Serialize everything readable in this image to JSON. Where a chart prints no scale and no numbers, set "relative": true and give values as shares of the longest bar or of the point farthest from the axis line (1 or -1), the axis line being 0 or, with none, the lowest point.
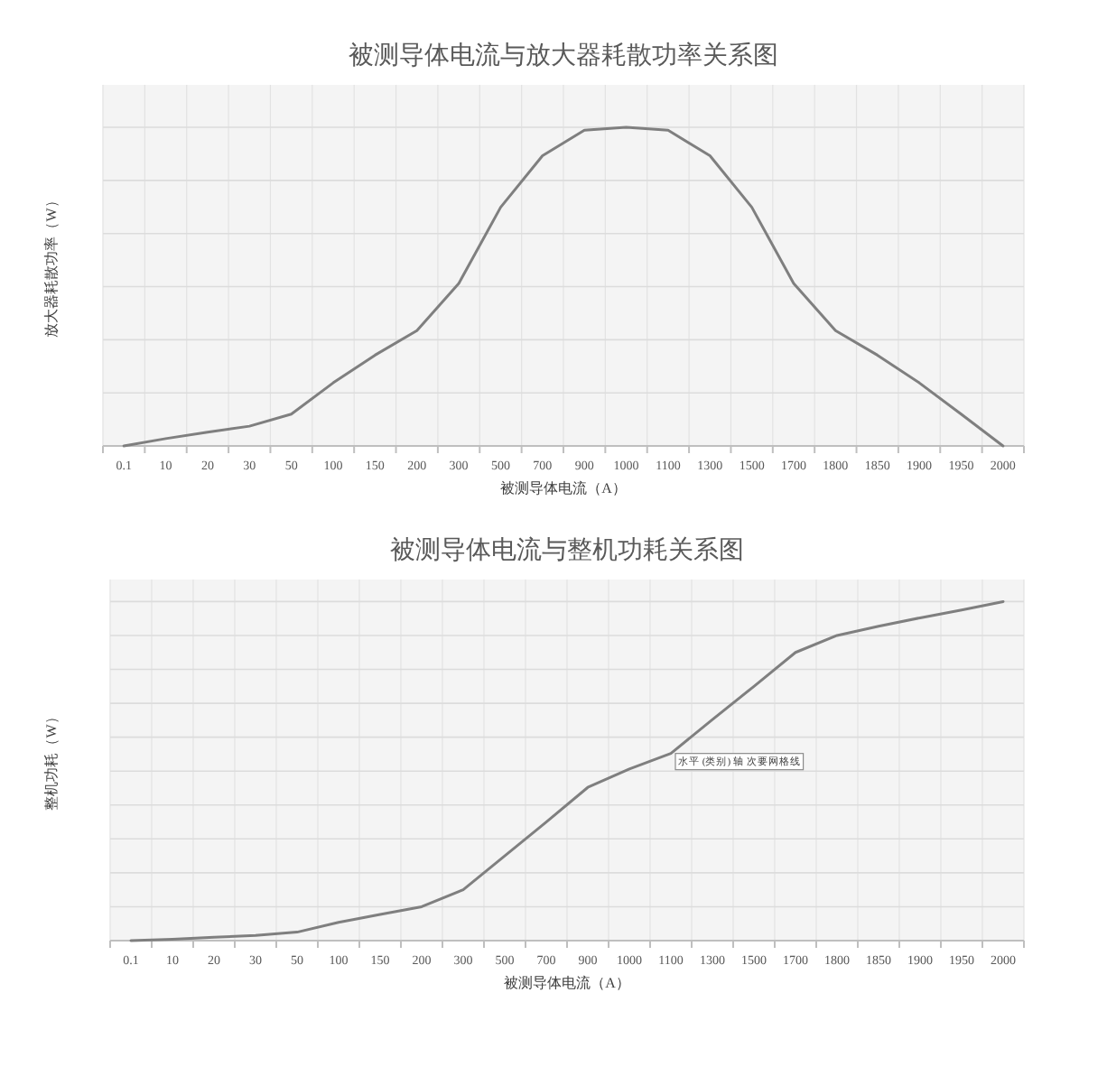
{
  "chart_data": [
    {
      "type": "line",
      "title": "被测导体电流与放大器耗散功率关系图",
      "xlabel": "被测导体电流（A）",
      "ylabel": "放大器耗散功率（W）",
      "relative": true,
      "grid": true,
      "marker": "none",
      "line_style": "solid",
      "categories": [
        "0.1",
        "10",
        "20",
        "30",
        "50",
        "100",
        "150",
        "200",
        "300",
        "500",
        "700",
        "900",
        "1000",
        "1100",
        "1300",
        "1500",
        "1700",
        "1800",
        "1850",
        "1900",
        "1950",
        "2000"
      ],
      "series": [
        {
          "color": "#7f7f7f",
          "values": [
            0,
            0.023,
            0.043,
            0.062,
            0.1,
            0.198,
            0.285,
            0.362,
            0.51,
            0.749,
            0.911,
            0.991,
            1,
            0.991,
            0.911,
            0.749,
            0.51,
            0.362,
            0.285,
            0.198,
            0.1,
            0
          ]
        }
      ]
    },
    {
      "type": "line",
      "title": "被测导体电流与整机功耗关系图",
      "xlabel": "被测导体电流（A）",
      "ylabel": "整机功耗（W）",
      "relative": true,
      "grid": true,
      "marker": "none",
      "line_style": "solid",
      "categories": [
        "0.1",
        "10",
        "20",
        "30",
        "50",
        "100",
        "150",
        "200",
        "300",
        "500",
        "700",
        "900",
        "1000",
        "1100",
        "1300",
        "1500",
        "1700",
        "1800",
        "1850",
        "1900",
        "1950",
        "2000"
      ],
      "series": [
        {
          "color": "#7f7f7f",
          "values": [
            0,
            0.004,
            0.01,
            0.015,
            0.025,
            0.054,
            0.077,
            0.1,
            0.15,
            0.25,
            0.35,
            0.452,
            0.506,
            0.552,
            0.652,
            0.75,
            0.85,
            0.9,
            0.927,
            0.952,
            0.975,
            1
          ]
        }
      ],
      "annotations": [
        {
          "text": "水平 (类别) 轴 次要网格线",
          "x": "1100",
          "y": 0.552
        }
      ]
    }
  ]
}
